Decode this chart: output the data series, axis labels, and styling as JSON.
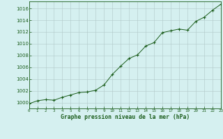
{
  "x": [
    0,
    1,
    2,
    3,
    4,
    5,
    6,
    7,
    8,
    9,
    10,
    11,
    12,
    13,
    14,
    15,
    16,
    17,
    18,
    19,
    20,
    21,
    22,
    23
  ],
  "y": [
    999.8,
    1000.3,
    1000.5,
    1000.4,
    1000.9,
    1001.3,
    1001.7,
    1001.8,
    1002.1,
    1003.0,
    1004.8,
    1006.2,
    1007.5,
    1008.1,
    1009.6,
    1010.2,
    1011.9,
    1012.2,
    1012.5,
    1012.3,
    1013.8,
    1014.5,
    1015.7,
    1016.7
  ],
  "title": "Graphe pression niveau de la mer (hPa)",
  "background_color": "#d5f0f0",
  "grid_color": "#b0c8c8",
  "line_color": "#1a5c1a",
  "marker_color": "#1a5c1a",
  "tick_label_color": "#1a5c1a",
  "title_color": "#1a5c1a",
  "ylabel_ticks": [
    1000,
    1002,
    1004,
    1006,
    1008,
    1010,
    1012,
    1014,
    1016
  ],
  "ylim": [
    999.0,
    1017.2
  ],
  "xlim": [
    0,
    23
  ],
  "xtick_labels": [
    "0",
    "1",
    "2",
    "3",
    "4",
    "5",
    "6",
    "7",
    "8",
    "9",
    "10",
    "11",
    "12",
    "13",
    "14",
    "15",
    "16",
    "17",
    "18",
    "19",
    "20",
    "21",
    "22",
    "23"
  ]
}
